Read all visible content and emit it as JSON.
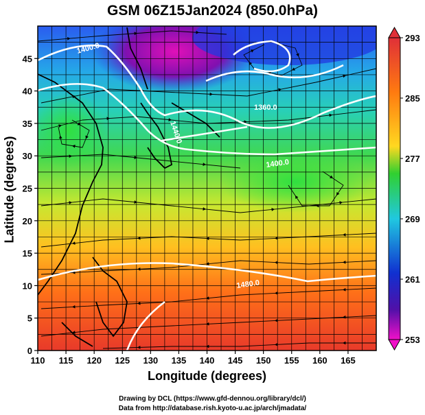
{
  "title": "GSM 06Z15Jan2024 (850.0hPa)",
  "x_axis": {
    "label": "Longitude (degrees)",
    "ticks": [
      "110",
      "115",
      "120",
      "125",
      "130",
      "135",
      "140",
      "145",
      "150",
      "155",
      "160",
      "165"
    ]
  },
  "y_axis": {
    "label": "Latitude  (degrees)",
    "ticks": [
      "0",
      "5",
      "10",
      "15",
      "20",
      "25",
      "30",
      "35",
      "40",
      "45"
    ]
  },
  "colorbar": {
    "labels": [
      "293",
      "285",
      "277",
      "269",
      "261",
      "253"
    ],
    "colors": [
      "#e0303a",
      "#ff8c10",
      "#ffe020",
      "#2ed02e",
      "#20c8d0",
      "#1840d8",
      "#2010a0",
      "#e010c0"
    ]
  },
  "contours": [
    {
      "label": "1400.0"
    },
    {
      "label": "1360.0"
    },
    {
      "label": "1440.0"
    },
    {
      "label": "1400.0"
    },
    {
      "label": "1480.0"
    }
  ],
  "credit_line1": "Drawing by DCL (https://www.gfd-dennou.org/library/dcl/)",
  "credit_line2": "Data from http://database.rish.kyoto-u.ac.jp/arch/jmadata/"
}
